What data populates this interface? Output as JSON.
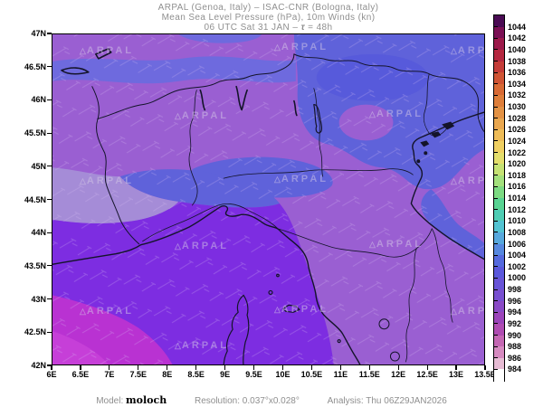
{
  "title": {
    "line1": "ARPAL (Genoa, Italy)  –  ISAC-CNR (Bologna, Italy)",
    "line2": "Mean Sea Level Pressure (hPa), 10m Winds (kn)",
    "line3_prefix": "06 UTC Sat 31 JAN  –  ",
    "line3_tau": "τ",
    "line3_suffix": " = 48h"
  },
  "axes": {
    "lat_labels": [
      "47N",
      "46.5N",
      "46N",
      "45.5N",
      "45N",
      "44.5N",
      "44N",
      "43.5N",
      "43N",
      "42.5N",
      "42N"
    ],
    "lon_labels": [
      "6E",
      "6.5E",
      "7E",
      "7.5E",
      "8E",
      "8.5E",
      "9E",
      "9.5E",
      "10E",
      "10.5E",
      "11E",
      "11.5E",
      "12E",
      "12.5E",
      "13E",
      "13.5E"
    ]
  },
  "colorbar": {
    "unit": "hPa",
    "labels": [
      "1044",
      "1042",
      "1040",
      "1038",
      "1036",
      "1034",
      "1032",
      "1030",
      "1028",
      "1026",
      "1024",
      "1022",
      "1020",
      "1018",
      "1016",
      "1014",
      "1012",
      "1010",
      "1008",
      "1006",
      "1004",
      "1002",
      "1000",
      "998",
      "996",
      "994",
      "992",
      "990",
      "988",
      "986",
      "984"
    ],
    "colors": [
      "#4b0b54",
      "#7a1054",
      "#9c1a4a",
      "#b52840",
      "#c43c38",
      "#cf5434",
      "#d86a34",
      "#de7e3a",
      "#e39245",
      "#e9a74f",
      "#eebc58",
      "#f0d062",
      "#e4de6c",
      "#c6e274",
      "#a3e07c",
      "#7cda82",
      "#58d392",
      "#4fcdb4",
      "#53c3d2",
      "#57a8dd",
      "#5688df",
      "#556ade",
      "#5b58dc",
      "#6854d7",
      "#7850d0",
      "#8a4ac6",
      "#9b44ba",
      "#af4cb2",
      "#c467b3",
      "#d68ac0",
      "#e7bcd4",
      "#ffffff"
    ]
  },
  "map": {
    "watermark": "ARPAL",
    "watermark_icon": "△",
    "outline_color": "#14142a",
    "barb_color": "#d8bff2",
    "field_colors": {
      "base": "#9a5fd2",
      "blue": "#5f62da",
      "blue_deep": "#575adb",
      "blue_light": "#6e6ade",
      "lavender": "#a58cd7",
      "violet": "#7d2de1",
      "magenta": "#b932d2",
      "magenta_bright": "#c63fd8"
    }
  },
  "footer": {
    "model_label": "Model:",
    "model_value": "moloch",
    "resolution_label": "Resolution:",
    "resolution_value": "0.037°x0.028°",
    "analysis_label": "Analysis:",
    "analysis_value": "Thu 06Z29JAN2026"
  },
  "chart_data": {
    "type": "heatmap",
    "title": "Mean Sea Level Pressure (hPa), 10m Winds (kn)",
    "x_range_deg_east": [
      6,
      13.5
    ],
    "y_range_deg_north": [
      42,
      47
    ],
    "legend_range_hPa": [
      984,
      1044
    ],
    "legend_step_hPa": 2,
    "field_summary": [
      {
        "region": "Ligurian Sea / southwest quadrant",
        "pressure_hPa": "990-994"
      },
      {
        "region": "bottom-left corner",
        "pressure_hPa": "988-990"
      },
      {
        "region": "central Po valley and Tuscany",
        "pressure_hPa": "996-1000"
      },
      {
        "region": "northeast (Veneto / Friuli / Alps)",
        "pressure_hPa": "1002-1006"
      }
    ]
  }
}
